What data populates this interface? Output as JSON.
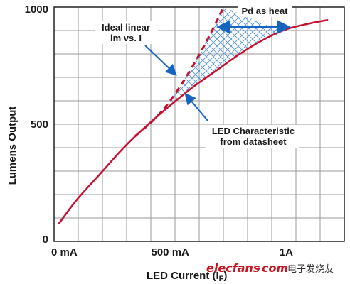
{
  "chart_data": {
    "type": "line",
    "title": "",
    "xlabel": "LED Current (I",
    "xlabel_sub": "F",
    "xlabel_close": ")",
    "ylabel": "Lumens Output",
    "xlim": [
      0,
      1.25
    ],
    "ylim": [
      0,
      1000
    ],
    "x_ticks": [
      {
        "value": 0,
        "label": "0 mA"
      },
      {
        "value": 0.5,
        "label": "500 mA"
      },
      {
        "value": 1.0,
        "label": "1A"
      }
    ],
    "y_ticks": [
      {
        "value": 0,
        "label": "0"
      },
      {
        "value": 500,
        "label": "500"
      },
      {
        "value": 1000,
        "label": "1000"
      }
    ],
    "grid": true,
    "series": [
      {
        "role": "led-characteristic",
        "color": "#c8102e",
        "style": "solid",
        "x": [
          0.02,
          0.1,
          0.2,
          0.3,
          0.4,
          0.5,
          0.6,
          0.7,
          0.8,
          0.9,
          1.0,
          1.1,
          1.18
        ],
        "y": [
          75,
          180,
          290,
          400,
          495,
          580,
          660,
          730,
          800,
          860,
          905,
          930,
          945
        ]
      },
      {
        "role": "ideal-linear",
        "color": "#c8102e",
        "style": "dashed",
        "x": [
          0.35,
          0.43,
          0.5,
          0.58,
          0.66,
          0.73
        ],
        "y": [
          450,
          520,
          600,
          720,
          860,
          1000
        ]
      }
    ],
    "annotations": [
      {
        "name": "ideal-linear",
        "lines": [
          "Ideal linear",
          "lm vs. I"
        ]
      },
      {
        "name": "pd-heat",
        "lines": [
          "Pd as heat"
        ]
      },
      {
        "name": "led-characteristic",
        "lines": [
          "LED Characteristic",
          "from datasheet"
        ]
      }
    ],
    "arrow_color": "#1565c0",
    "hatch_color": "#4a90d9"
  },
  "watermark": {
    "latin_part1": "elecfans",
    "latin_dot": "·",
    "latin_part2": "com",
    "cjk": "电子发烧友"
  }
}
